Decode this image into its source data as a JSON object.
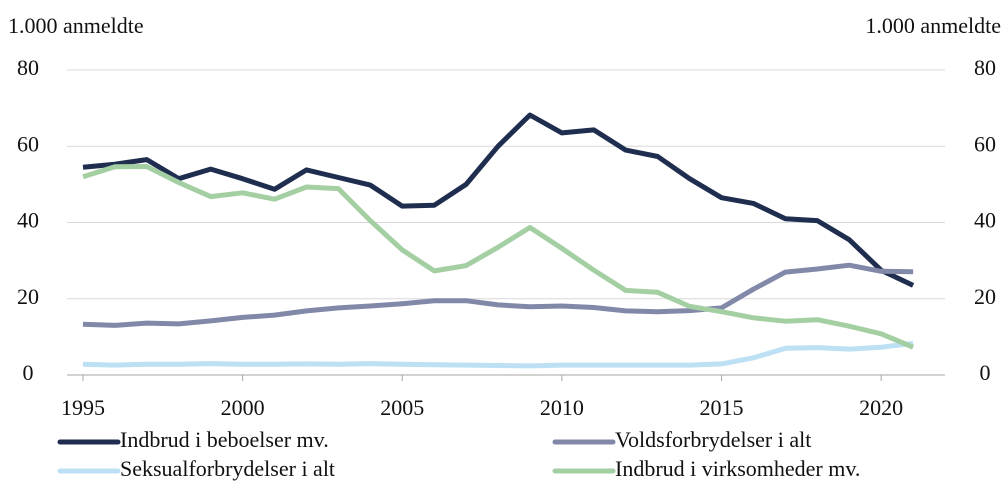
{
  "chart_data": {
    "type": "line",
    "y_label": "1.000 anmeldte",
    "y2_label": "1.000 anmeldte",
    "x": [
      1995,
      1996,
      1997,
      1998,
      1999,
      2000,
      2001,
      2002,
      2003,
      2004,
      2005,
      2006,
      2007,
      2008,
      2009,
      2010,
      2011,
      2012,
      2013,
      2014,
      2015,
      2016,
      2017,
      2018,
      2019,
      2020,
      2021
    ],
    "xlim": [
      1994.5,
      2022
    ],
    "xticks": [
      1995,
      2000,
      2005,
      2010,
      2015,
      2020
    ],
    "ylim": [
      0,
      80
    ],
    "yticks": [
      0,
      20,
      40,
      60,
      80
    ],
    "y2lim": [
      0,
      80
    ],
    "y2ticks": [
      0,
      20,
      40,
      60,
      80
    ],
    "grid": true,
    "legend": "bottom",
    "series": [
      {
        "name": "Indbrud i beboelser mv.",
        "color": "#1f2d4f",
        "values": [
          54.5,
          55.3,
          56.5,
          51.5,
          54,
          51.5,
          48.7,
          53.8,
          51.8,
          49.8,
          44.3,
          44.5,
          50,
          60,
          68.2,
          63.5,
          64.3,
          59,
          57.3,
          51.5,
          46.5,
          45,
          41,
          40.5,
          35.5,
          27.5,
          23.5
        ]
      },
      {
        "name": "Voldsforbrydelser i alt",
        "color": "#8288a8",
        "values": [
          13.3,
          13,
          13.6,
          13.4,
          14.2,
          15.1,
          15.7,
          16.8,
          17.6,
          18.1,
          18.7,
          19.5,
          19.5,
          18.4,
          17.9,
          18.1,
          17.7,
          16.8,
          16.6,
          16.9,
          17.6,
          22.5,
          27,
          27.8,
          28.8,
          27.2,
          27.1
        ]
      },
      {
        "name": "Seksualforbrydelser i alt",
        "color": "#bde0f5",
        "values": [
          2.8,
          2.6,
          2.8,
          2.8,
          3,
          2.8,
          2.8,
          2.9,
          2.8,
          3,
          2.8,
          2.7,
          2.6,
          2.5,
          2.4,
          2.6,
          2.6,
          2.6,
          2.6,
          2.6,
          2.9,
          4.5,
          7,
          7.2,
          6.8,
          7.3,
          8.3
        ]
      },
      {
        "name": "Indbrud i virksomheder mv.",
        "color": "#a3cfa3",
        "values": [
          52,
          54.6,
          54.7,
          50.5,
          46.8,
          47.8,
          46.1,
          49.3,
          48.9,
          40.5,
          32.8,
          27.3,
          28.7,
          33.5,
          38.7,
          33.2,
          27.5,
          22.2,
          21.7,
          18,
          16.6,
          15,
          14.1,
          14.5,
          12.8,
          10.8,
          7.3
        ]
      }
    ]
  }
}
